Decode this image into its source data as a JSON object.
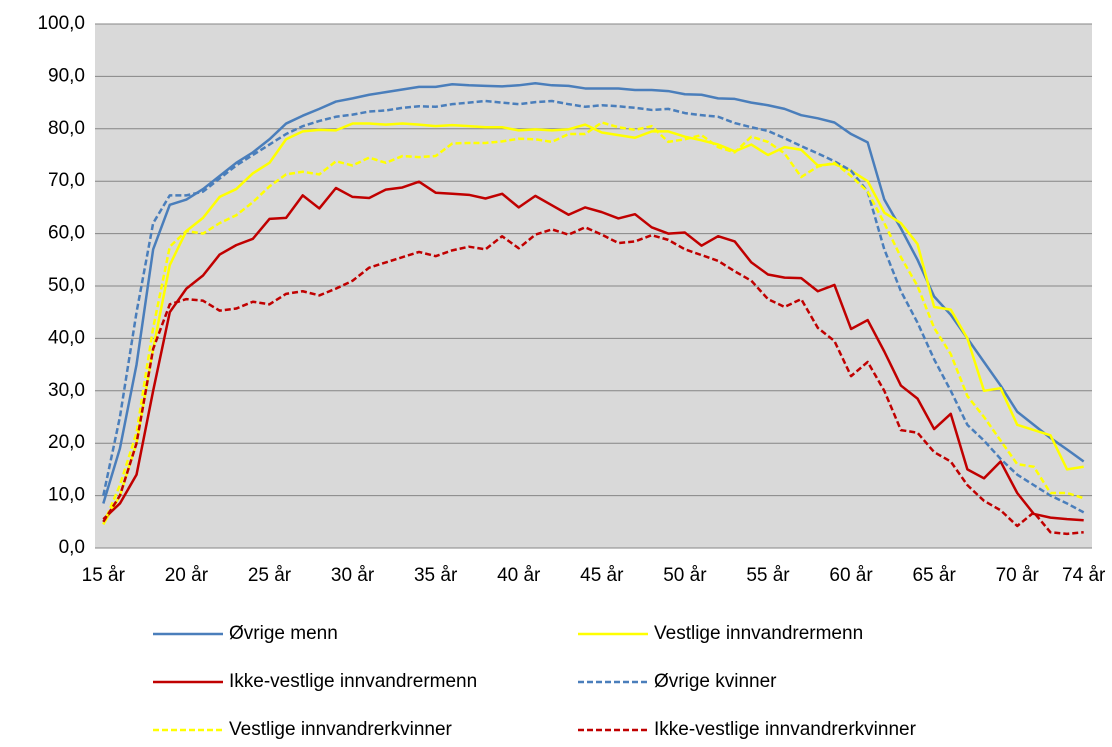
{
  "chart_data": {
    "type": "line",
    "categories": [
      "15 år",
      null,
      null,
      null,
      null,
      "20 år",
      null,
      null,
      null,
      null,
      "25 år",
      null,
      null,
      null,
      null,
      "30 år",
      null,
      null,
      null,
      null,
      "35 år",
      null,
      null,
      null,
      null,
      "40 år",
      null,
      null,
      null,
      null,
      "45 år",
      null,
      null,
      null,
      null,
      "50 år",
      null,
      null,
      null,
      null,
      "55 år",
      null,
      null,
      null,
      null,
      "60 år",
      null,
      null,
      null,
      null,
      "65 år",
      null,
      null,
      null,
      null,
      "70 år",
      null,
      null,
      null,
      "74 år"
    ],
    "series": [
      {
        "name": "Øvrige menn",
        "color": "#4a7ebb",
        "dashed": false,
        "values": [
          8.5,
          19,
          35,
          57,
          65.5,
          66.5,
          68.5,
          71,
          73.5,
          75.5,
          78,
          81,
          82.5,
          83.8,
          85.2,
          85.8,
          86.5,
          87,
          87.5,
          88,
          88,
          88.5,
          88.3,
          88.2,
          88.1,
          88.3,
          88.7,
          88.3,
          88.2,
          87.7,
          87.7,
          87.7,
          87.4,
          87.4,
          87.2,
          86.6,
          86.5,
          85.8,
          85.7,
          85,
          84.5,
          83.8,
          82.6,
          82,
          81.2,
          79,
          77.4,
          66.5,
          61,
          55,
          48,
          44.5,
          40,
          35.5,
          31,
          26,
          23.5,
          21,
          18.8,
          16.5
        ]
      },
      {
        "name": "Vestlige innvandrermenn",
        "color": "#ffff00",
        "dashed": false,
        "values": [
          4.5,
          10,
          20,
          38,
          54,
          60.5,
          63,
          67,
          68.5,
          71.5,
          73.5,
          78,
          79.5,
          79.8,
          79.7,
          81,
          81,
          80.8,
          81,
          80.8,
          80.5,
          80.7,
          80.5,
          80.3,
          80.3,
          79.7,
          79.9,
          79.7,
          79.9,
          80.8,
          79.3,
          78.8,
          78.3,
          79.5,
          79.5,
          78.5,
          77.8,
          77,
          75.7,
          77,
          75,
          76.5,
          76,
          73,
          73.3,
          72,
          70,
          64,
          62,
          58,
          46,
          45.5,
          40,
          30,
          30.5,
          23.5,
          22.5,
          21.5,
          15,
          15.5
        ]
      },
      {
        "name": "Ikke-vestlige innvandrermenn",
        "color": "#c00000",
        "dashed": false,
        "values": [
          5.5,
          8.5,
          14,
          30,
          45,
          49.5,
          52,
          56,
          57.8,
          59,
          62.8,
          63,
          67.3,
          64.8,
          68.7,
          67,
          66.8,
          68.4,
          68.8,
          69.9,
          67.8,
          67.6,
          67.4,
          66.7,
          67.6,
          65,
          67.2,
          65.4,
          63.6,
          65,
          64.1,
          62.9,
          63.7,
          61.2,
          60,
          60.2,
          57.7,
          59.5,
          58.5,
          54.5,
          52.2,
          51.6,
          51.5,
          49,
          50.2,
          41.8,
          43.5,
          37.5,
          31,
          28.5,
          22.7,
          25.6,
          15,
          13.3,
          16.5,
          10.5,
          6.5,
          5.8,
          5.5,
          5.3
        ]
      },
      {
        "name": "Øvrige kvinner",
        "color": "#4a7ebb",
        "dashed": true,
        "values": [
          10,
          25,
          45,
          62,
          67.3,
          67.3,
          68,
          70.5,
          73,
          75,
          77,
          79,
          80.5,
          81.5,
          82.3,
          82.7,
          83.3,
          83.5,
          84,
          84.3,
          84.2,
          84.7,
          85,
          85.3,
          85,
          84.7,
          85.1,
          85.3,
          84.7,
          84.2,
          84.5,
          84.3,
          84,
          83.6,
          83.8,
          83,
          82.6,
          82.3,
          81.1,
          80.3,
          79.6,
          78.2,
          76.7,
          75.3,
          73.8,
          72,
          68,
          57,
          49,
          43,
          36,
          30,
          23.5,
          20.5,
          17,
          14,
          12,
          10,
          8.5,
          6.8
        ]
      },
      {
        "name": "Vestlige innvandrerkvinner",
        "color": "#ffff00",
        "dashed": true,
        "values": [
          4.5,
          12,
          22,
          42,
          57.5,
          60.5,
          60,
          62,
          63.5,
          66,
          69,
          71.3,
          71.8,
          71.3,
          73.8,
          73,
          74.5,
          73.5,
          74.8,
          74.6,
          74.8,
          77.2,
          77.3,
          77.3,
          77.6,
          78.1,
          78,
          77.5,
          79,
          79,
          81.2,
          80.3,
          79.8,
          80.5,
          77.5,
          78,
          78.8,
          76.5,
          75.5,
          78.5,
          77.5,
          75.3,
          70.8,
          72.8,
          73.5,
          71,
          68,
          62,
          55.5,
          50,
          42,
          37,
          29,
          25,
          20.5,
          16,
          15.5,
          10.5,
          10.5,
          9.5
        ]
      },
      {
        "name": "Ikke-vestlige innvandrerkvinner",
        "color": "#c00000",
        "dashed": true,
        "values": [
          5,
          10,
          20,
          38,
          46.5,
          47.5,
          47.2,
          45.3,
          45.7,
          47,
          46.5,
          48.5,
          49,
          48.2,
          49.5,
          51,
          53.5,
          54.5,
          55.5,
          56.5,
          55.7,
          56.8,
          57.5,
          57,
          59.5,
          57.2,
          59.8,
          60.8,
          59.8,
          61.2,
          59.8,
          58.2,
          58.5,
          59.7,
          58.8,
          57,
          55.9,
          54.8,
          52.8,
          51,
          47.5,
          46,
          47.5,
          42,
          39.5,
          32.8,
          35.5,
          30,
          22.5,
          22,
          18.3,
          16.5,
          12,
          9,
          7.2,
          4.2,
          6.8,
          3,
          2.7,
          3
        ]
      }
    ],
    "ylim": [
      0,
      100
    ],
    "yticks": [
      {
        "value": 0,
        "label": "0,0"
      },
      {
        "value": 10,
        "label": "10,0"
      },
      {
        "value": 20,
        "label": "20,0"
      },
      {
        "value": 30,
        "label": "30,0"
      },
      {
        "value": 40,
        "label": "40,0"
      },
      {
        "value": 50,
        "label": "50,0"
      },
      {
        "value": 60,
        "label": "60,0"
      },
      {
        "value": 70,
        "label": "70,0"
      },
      {
        "value": 80,
        "label": "80,0"
      },
      {
        "value": 90,
        "label": "90,0"
      },
      {
        "value": 100,
        "label": "100,0"
      }
    ],
    "grid": true,
    "plot_background": "#d9d9d9",
    "legend": "bottom"
  }
}
